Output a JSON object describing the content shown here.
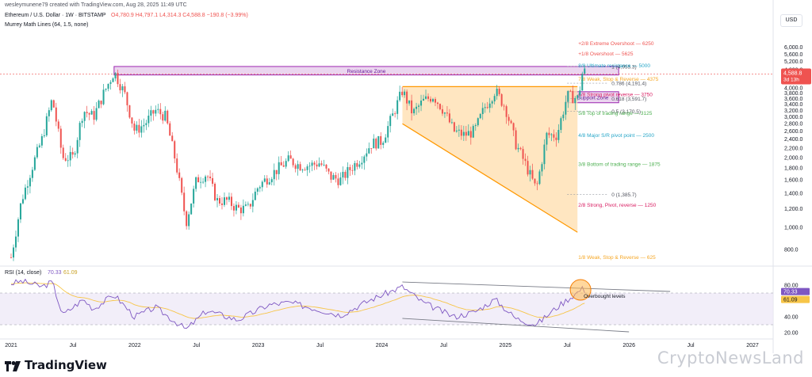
{
  "header": {
    "credit": "wesleymunene79 created with TradingView.com, Aug 28, 2025 11:49 UTC",
    "symbol": "Ethereum / U.S. Dollar · 1W · BITSTAMP",
    "ohlc": "O4,780.9  H4,797.1  L4,314.3  C4,588.8  −190.8 (−3.99%)",
    "indicator": "Murrey Math Lines (64, 1.5, none)",
    "currency_button": "USD",
    "rsi_label": "RSI (14, close)",
    "rsi_val1": "70.33",
    "rsi_val2": "61.09"
  },
  "footer": {
    "brand": "TradingView",
    "watermark": "CryptoNewsLand"
  },
  "colors": {
    "up": "#26a69a",
    "down": "#ef5350",
    "resistance_fill": "#e1bee7",
    "resistance_stroke": "#9c27b0",
    "triangle_fill": "#ffe0b2",
    "triangle_stroke": "#ff9800",
    "rsi_line": "#7e57c2",
    "rsi_ma": "#f7c548",
    "rsi_band": "#ede7f6"
  },
  "chart_data": {
    "type": "candlestick",
    "symbol": "ETH/USD",
    "timeframe": "1W",
    "y_scale": "log",
    "ylim": [
      700,
      7000
    ],
    "y_ticks": [
      800,
      1000,
      1200,
      1400,
      1600,
      1800,
      2000,
      2200,
      2400,
      2600,
      2800,
      3000,
      3200,
      3400,
      3600,
      3800,
      4000,
      4800,
      5200,
      5600,
      6000
    ],
    "y_tick_labels": [
      "800.0",
      "1,000.0",
      "1,200.0",
      "1,400.0",
      "1,600.0",
      "1,800.0",
      "2,000.0",
      "2,200.0",
      "2,400.0",
      "2,600.0",
      "2,800.0",
      "3,000.0",
      "3,200.0",
      "3,400.0",
      "3,600.0",
      "3,800.0",
      "4,000.0",
      "4,800.0",
      "5,200.0",
      "5,600.0",
      "6,000.0"
    ],
    "x_range": [
      "2021-01",
      "2027-03"
    ],
    "x_ticks": [
      {
        "label": "2021",
        "date": "2021-01"
      },
      {
        "label": "Jul",
        "date": "2021-07"
      },
      {
        "label": "2022",
        "date": "2022-01"
      },
      {
        "label": "Jul",
        "date": "2022-07"
      },
      {
        "label": "2023",
        "date": "2023-01"
      },
      {
        "label": "Jul",
        "date": "2023-07"
      },
      {
        "label": "2024",
        "date": "2024-01"
      },
      {
        "label": "Jul",
        "date": "2024-07"
      },
      {
        "label": "2025",
        "date": "2025-01"
      },
      {
        "label": "Jul",
        "date": "2025-07"
      },
      {
        "label": "2026",
        "date": "2026-01"
      },
      {
        "label": "Jul",
        "date": "2026-07"
      },
      {
        "label": "2027",
        "date": "2027-01"
      }
    ],
    "price_path": [
      [
        "2021-01",
        740
      ],
      [
        "2021-02",
        1300
      ],
      [
        "2021-03",
        1800
      ],
      [
        "2021-04",
        2400
      ],
      [
        "2021-05",
        3600
      ],
      [
        "2021-06",
        2000
      ],
      [
        "2021-07",
        2000
      ],
      [
        "2021-08",
        3200
      ],
      [
        "2021-09",
        3000
      ],
      [
        "2021-10",
        3800
      ],
      [
        "2021-11",
        4700
      ],
      [
        "2021-12",
        3800
      ],
      [
        "2022-01",
        2600
      ],
      [
        "2022-02",
        2800
      ],
      [
        "2022-03",
        3200
      ],
      [
        "2022-04",
        3000
      ],
      [
        "2022-05",
        1900
      ],
      [
        "2022-06",
        1050
      ],
      [
        "2022-07",
        1600
      ],
      [
        "2022-08",
        1700
      ],
      [
        "2022-09",
        1300
      ],
      [
        "2022-10",
        1300
      ],
      [
        "2022-11",
        1200
      ],
      [
        "2022-12",
        1200
      ],
      [
        "2023-01",
        1500
      ],
      [
        "2023-02",
        1650
      ],
      [
        "2023-03",
        1800
      ],
      [
        "2023-04",
        1950
      ],
      [
        "2023-05",
        1850
      ],
      [
        "2023-06",
        1850
      ],
      [
        "2023-07",
        1900
      ],
      [
        "2023-08",
        1650
      ],
      [
        "2023-09",
        1600
      ],
      [
        "2023-10",
        1800
      ],
      [
        "2023-11",
        2000
      ],
      [
        "2023-12",
        2300
      ],
      [
        "2024-01",
        2350
      ],
      [
        "2024-02",
        3000
      ],
      [
        "2024-03",
        3900
      ],
      [
        "2024-04",
        3100
      ],
      [
        "2024-05",
        3500
      ],
      [
        "2024-06",
        3700
      ],
      [
        "2024-07",
        3200
      ],
      [
        "2024-08",
        2600
      ],
      [
        "2024-09",
        2500
      ],
      [
        "2024-10",
        2600
      ],
      [
        "2024-11",
        3300
      ],
      [
        "2024-12",
        3900
      ],
      [
        "2025-01",
        3300
      ],
      [
        "2025-02",
        2300
      ],
      [
        "2025-03",
        1850
      ],
      [
        "2025-04",
        1450
      ],
      [
        "2025-05",
        2500
      ],
      [
        "2025-06",
        2500
      ],
      [
        "2025-07",
        3700
      ],
      [
        "2025-08-03",
        3600
      ],
      [
        "2025-08-17",
        4800
      ],
      [
        "2025-08-28",
        4588.8
      ]
    ],
    "last_price": {
      "value": 4588.8,
      "label": "4,588.8",
      "countdown": "3d 13h"
    },
    "murrey_lines": [
      {
        "label": "+2/8 Extreme Overshoot",
        "value": 6250,
        "color": "#ef5350"
      },
      {
        "label": "+1/8 Overshoot",
        "value": 5625,
        "color": "#ef5350"
      },
      {
        "label": "8/8 Ultimate resistance",
        "value": 5000,
        "color": "#26a6c8"
      },
      {
        "label": "7/8 Weak, Stop & Reverse",
        "value": 4375,
        "color": "#f5a623"
      },
      {
        "label": "6/8 Strong pivot reverse",
        "value": 3750,
        "color": "#d81b60"
      },
      {
        "label": "5/8 Top of trading range",
        "value": 3125,
        "color": "#4caf50"
      },
      {
        "label": "4/8 Major S/R pivot point",
        "value": 2500,
        "color": "#26a6c8"
      },
      {
        "label": "3/8 Bottom of trading range",
        "value": 1875,
        "color": "#4caf50"
      },
      {
        "label": "2/8 Strong, Pivot, reverse",
        "value": 1250,
        "color": "#d81b60"
      },
      {
        "label": "1/8 Weak, Stop & Reverse",
        "value": 625,
        "color": "#f5a623"
      }
    ],
    "fib_levels": [
      {
        "label": "1 (4,955.3)",
        "value": 4955.3
      },
      {
        "label": "0.786 (4,191.4)",
        "value": 4191.4
      },
      {
        "label": "0.618 (3,591.7)",
        "value": 3591.7
      },
      {
        "label": "0.5 (3,170.5)",
        "value": 3170.5
      },
      {
        "label": "0 (1,385.7)",
        "value": 1385.7
      }
    ],
    "zones": [
      {
        "label": "Resistance Zone",
        "from": "2021-11",
        "to": "2025-12",
        "low": 4550,
        "high": 4950
      },
      {
        "label": "Support Zone",
        "from": "2025-07",
        "to": "2025-12",
        "low": 3450,
        "high": 3850
      }
    ],
    "triangle": {
      "top": 4050,
      "start": "2024-03",
      "end": "2025-08",
      "lower_start": 2800,
      "lower_end": 950
    },
    "rsi": {
      "label": "RSI (14, close)",
      "ylim": [
        20,
        90
      ],
      "ticks": [
        20,
        40,
        60,
        80
      ],
      "tick_labels": [
        "20.00",
        "40.00",
        "60.00",
        "80.00"
      ],
      "band": [
        30,
        70
      ],
      "current": 70.33,
      "ma": 61.09,
      "annotation": "Overbought levels",
      "path": [
        [
          "2021-01",
          82
        ],
        [
          "2021-02",
          85
        ],
        [
          "2021-04",
          78
        ],
        [
          "2021-05",
          84
        ],
        [
          "2021-06",
          42
        ],
        [
          "2021-08",
          62
        ],
        [
          "2021-09",
          50
        ],
        [
          "2021-11",
          68
        ],
        [
          "2022-01",
          40
        ],
        [
          "2022-03",
          52
        ],
        [
          "2022-06",
          24
        ],
        [
          "2022-08",
          48
        ],
        [
          "2022-11",
          36
        ],
        [
          "2023-02",
          55
        ],
        [
          "2023-04",
          58
        ],
        [
          "2023-06",
          52
        ],
        [
          "2023-09",
          42
        ],
        [
          "2023-12",
          62
        ],
        [
          "2024-03",
          78
        ],
        [
          "2024-05",
          58
        ],
        [
          "2024-08",
          40
        ],
        [
          "2024-10",
          46
        ],
        [
          "2024-12",
          62
        ],
        [
          "2025-02",
          38
        ],
        [
          "2025-04",
          30
        ],
        [
          "2025-06",
          52
        ],
        [
          "2025-08-17",
          76
        ],
        [
          "2025-08-28",
          70.33
        ]
      ]
    }
  }
}
